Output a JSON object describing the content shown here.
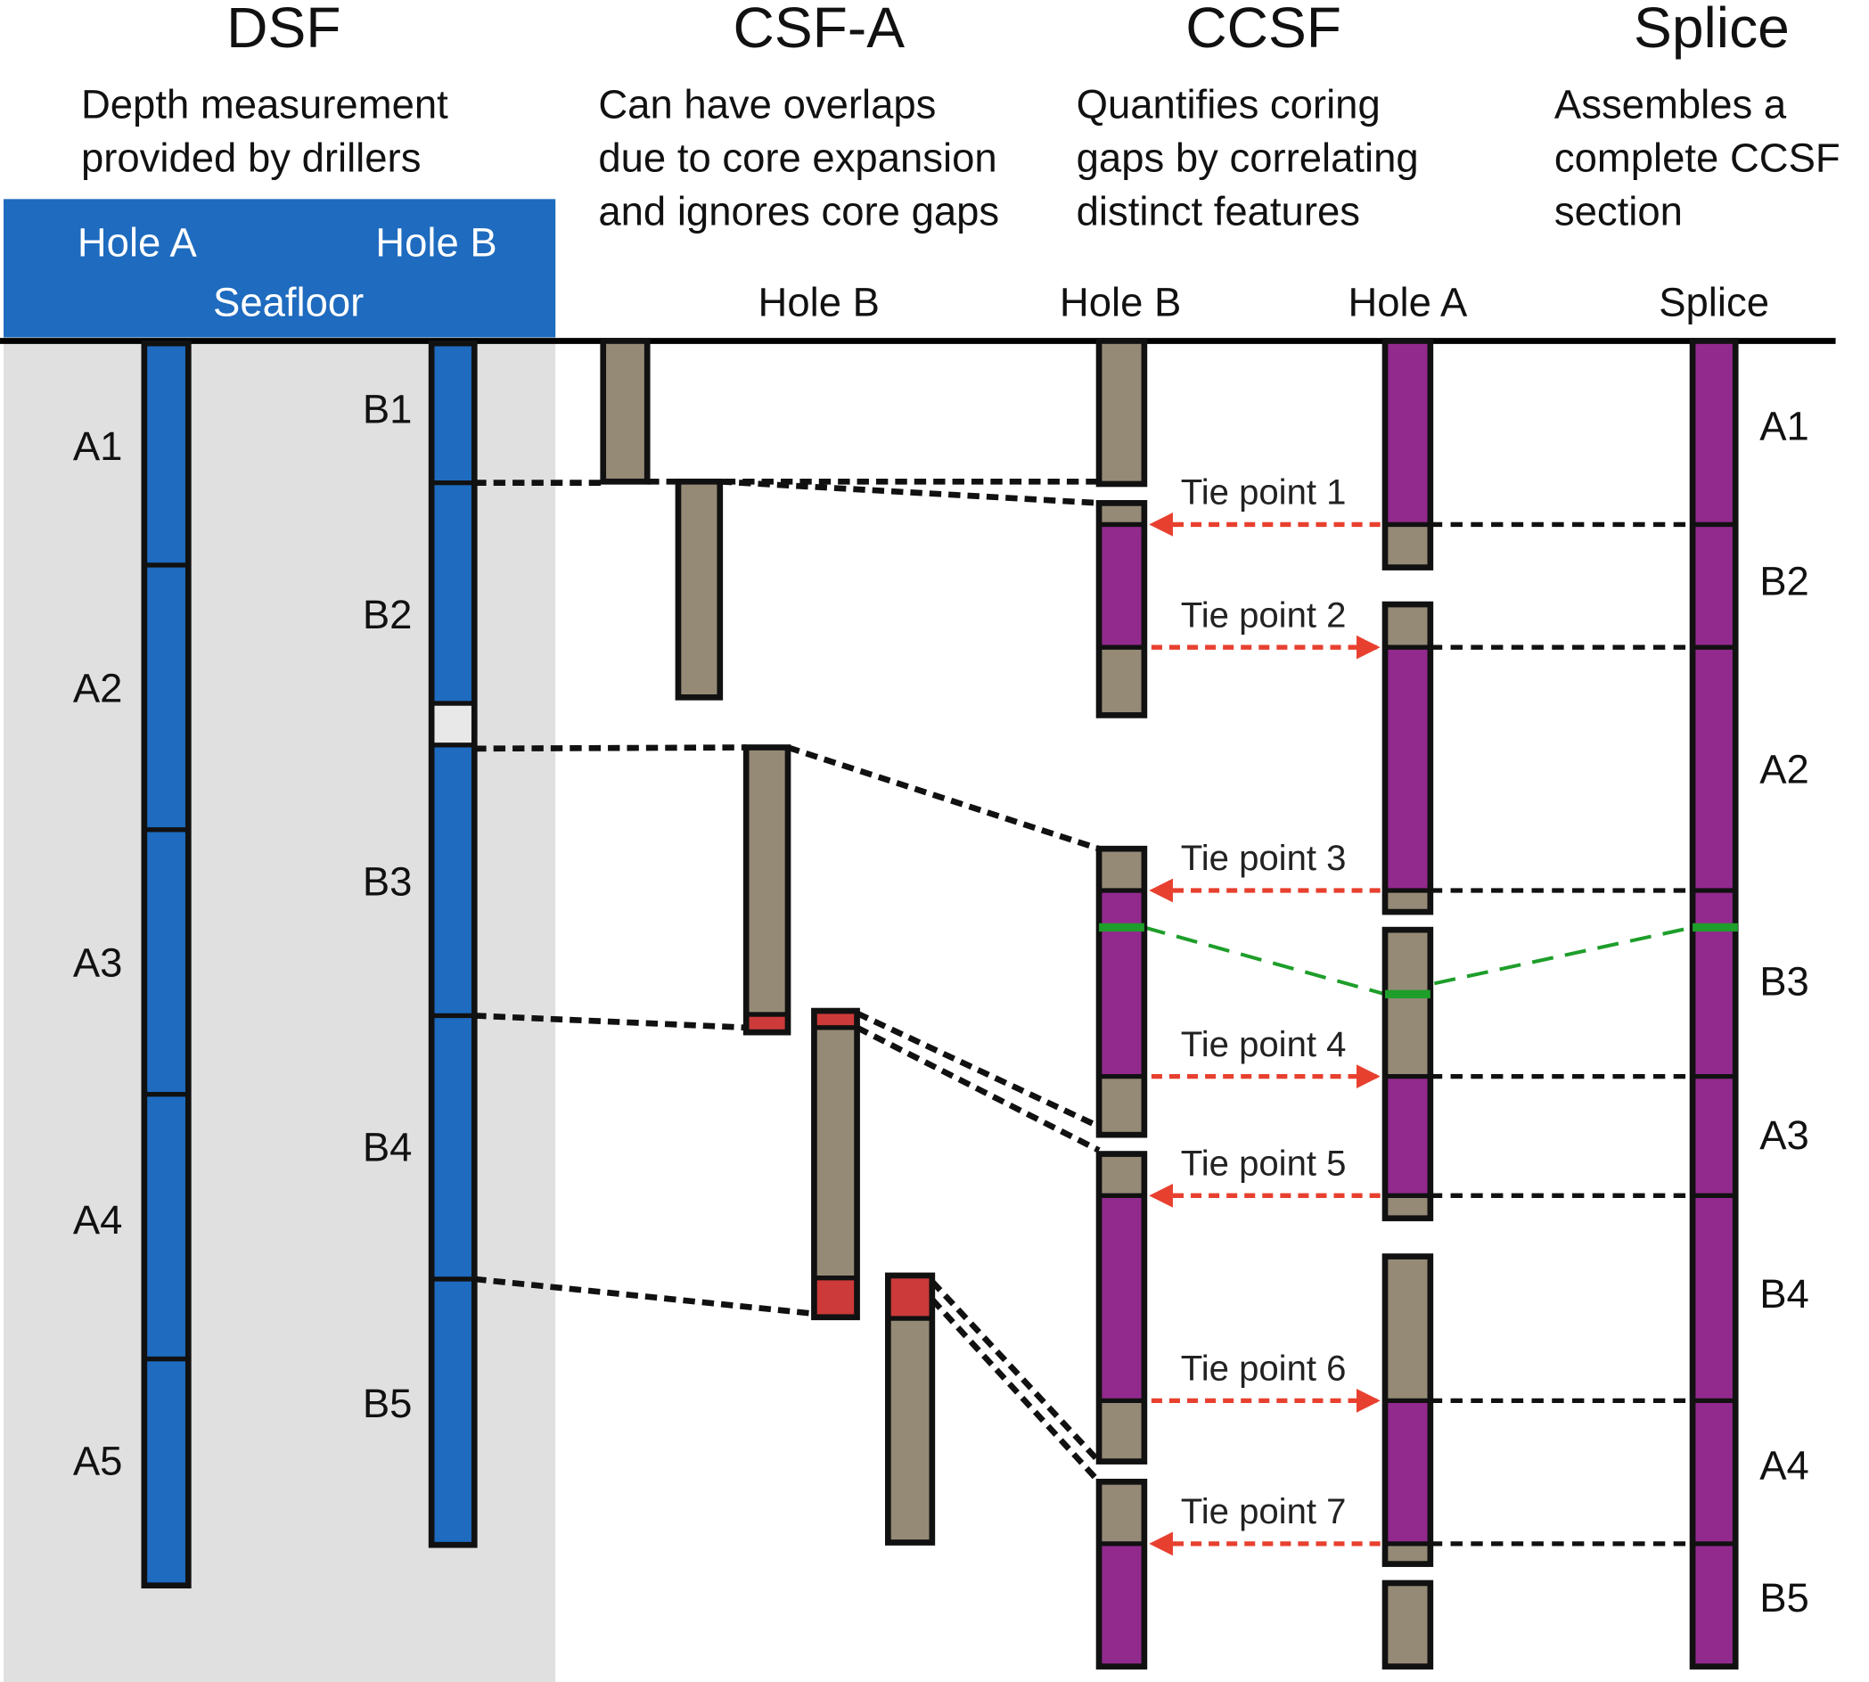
{
  "columns": [
    {
      "title": "DSF",
      "description": [
        "Depth measurement",
        "provided by drillers"
      ]
    },
    {
      "title": "CSF-A",
      "description": [
        "Can have overlaps",
        "due to core expansion",
        "and ignores core gaps"
      ]
    },
    {
      "title": "CCSF",
      "description": [
        "Quantifies coring",
        "gaps by correlating",
        "distinct features"
      ]
    },
    {
      "title": "Splice",
      "description": [
        "Assembles a",
        "complete CCSF",
        "section"
      ]
    }
  ],
  "dsf_header": {
    "hole_a": "Hole A",
    "hole_b": "Hole B",
    "seafloor": "Seafloor"
  },
  "hole_labels": {
    "csf_a": "Hole B",
    "ccsf_b": "Hole B",
    "ccsf_a": "Hole A",
    "splice": "Splice"
  },
  "hole_a_cores": [
    "A1",
    "A2",
    "A3",
    "A4",
    "A5"
  ],
  "hole_b_cores": [
    "B1",
    "B2",
    "B3",
    "B4",
    "B5"
  ],
  "tie_points": [
    "Tie point 1",
    "Tie point 2",
    "Tie point 3",
    "Tie point 4",
    "Tie point 5",
    "Tie point 6",
    "Tie point 7"
  ],
  "splice_sections": [
    "A1",
    "B2",
    "A2",
    "B3",
    "A3",
    "B4",
    "A4",
    "B5"
  ]
}
